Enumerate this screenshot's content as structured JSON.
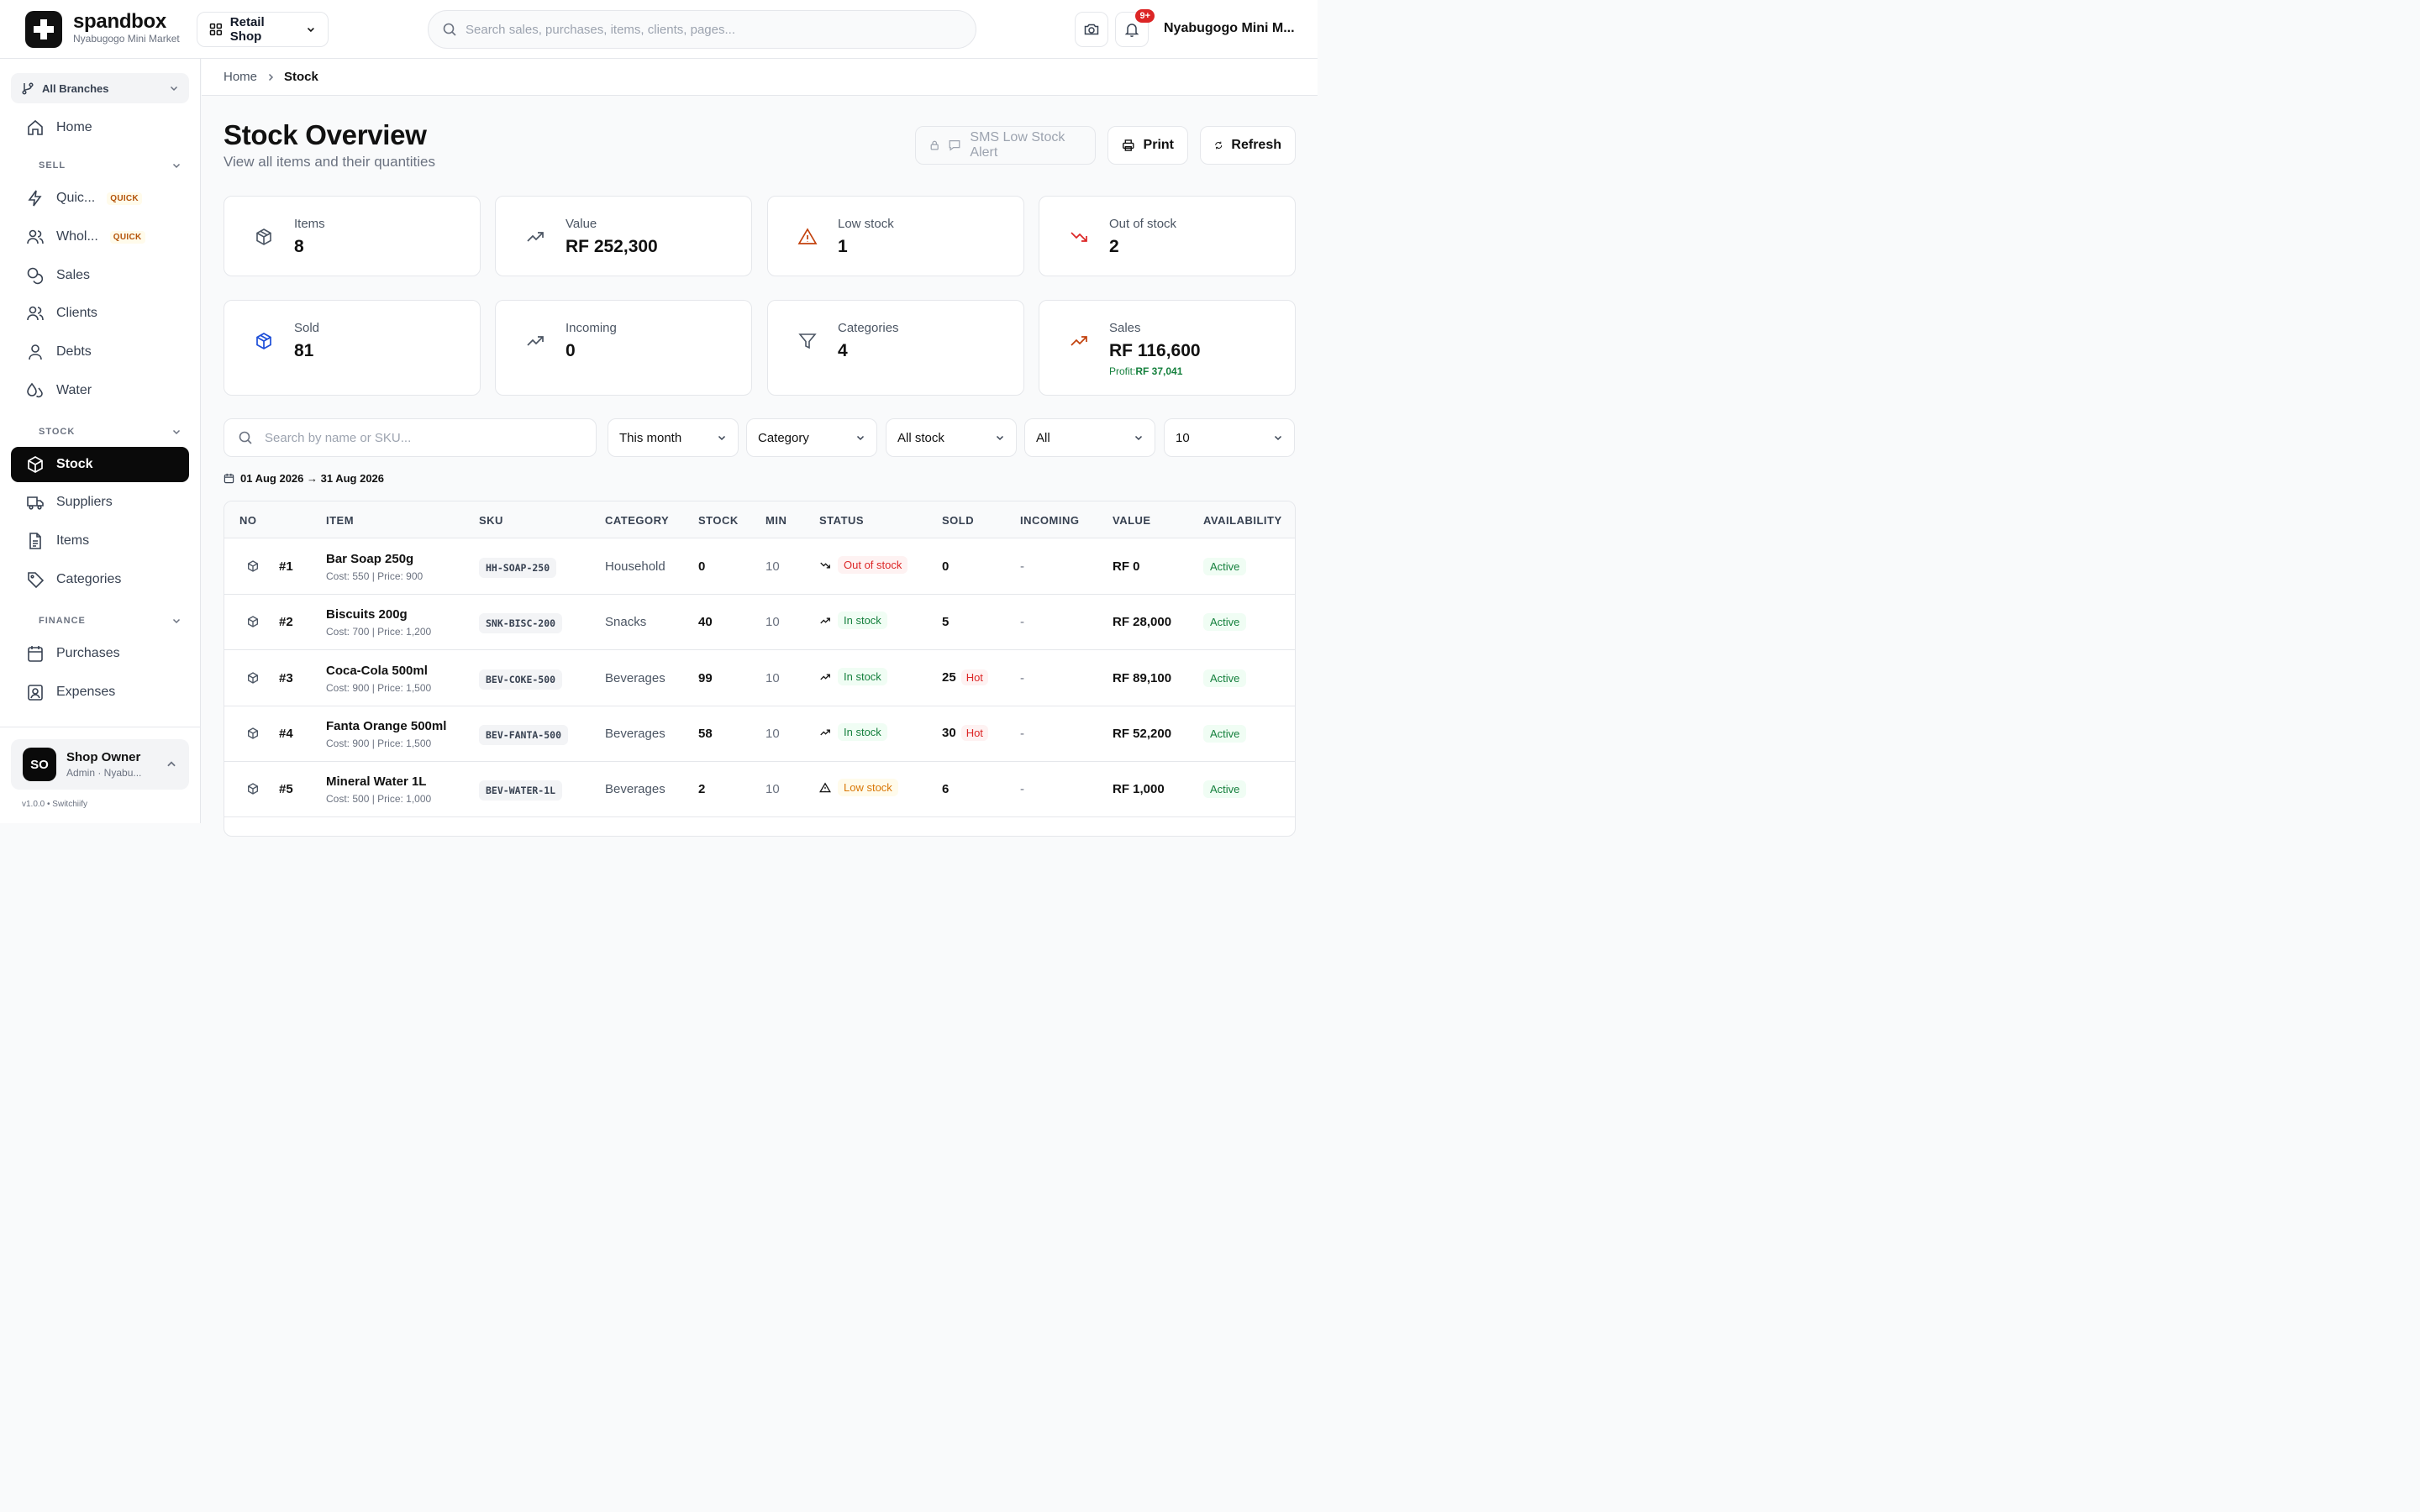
{
  "brand": {
    "name": "spandbox",
    "subtitle": "Nyabugogo Mini Market"
  },
  "topbar": {
    "shop_selector": "Retail Shop",
    "search_placeholder": "Search sales, purchases, items, clients, pages...",
    "notification_badge": "9+",
    "user_name": "Nyabugogo Mini M..."
  },
  "sidebar": {
    "branch": "All Branches",
    "home": "Home",
    "sections": {
      "sell": "SELL",
      "stock": "STOCK",
      "finance": "FINANCE"
    },
    "sell_items": [
      {
        "label": "Quic...",
        "tag": "QUICK"
      },
      {
        "label": "Whol...",
        "tag": "QUICK"
      },
      {
        "label": "Sales"
      },
      {
        "label": "Clients"
      },
      {
        "label": "Debts"
      },
      {
        "label": "Water"
      }
    ],
    "stock_items": [
      "Stock",
      "Suppliers",
      "Items",
      "Categories"
    ],
    "finance_items": [
      "Purchases",
      "Expenses"
    ],
    "user": {
      "initials": "SO",
      "name": "Shop Owner",
      "role": "Admin · Nyabu..."
    },
    "version": "v1.0.0 • Switchiify"
  },
  "breadcrumb": {
    "home": "Home",
    "current": "Stock"
  },
  "page": {
    "title": "Stock Overview",
    "subtitle": "View all items and their quantities"
  },
  "actions": {
    "sms": "SMS Low Stock Alert",
    "print": "Print",
    "refresh": "Refresh"
  },
  "stats": [
    {
      "label": "Items",
      "value": "8",
      "icon": "box-icon"
    },
    {
      "label": "Value",
      "value": "RF 252,300",
      "icon": "trending-up-icon"
    },
    {
      "label": "Low stock",
      "value": "1",
      "icon": "warning-icon",
      "color": "#c2410c"
    },
    {
      "label": "Out of stock",
      "value": "2",
      "icon": "trending-down-icon",
      "color": "#dc2626"
    },
    {
      "label": "Sold",
      "value": "81",
      "icon": "box-icon",
      "color": "#1d4ed8"
    },
    {
      "label": "Incoming",
      "value": "0",
      "icon": "trending-up-icon"
    },
    {
      "label": "Categories",
      "value": "4",
      "icon": "filter-icon"
    },
    {
      "label": "Sales",
      "value": "RF 116,600",
      "icon": "trending-up-icon",
      "color": "#c2410c",
      "profit_label": "Profit:",
      "profit_value": "RF 37,041"
    }
  ],
  "filters": {
    "search_placeholder": "Search by name or SKU...",
    "period": "This month",
    "category": "Category",
    "stock": "All stock",
    "status": "All",
    "page_size": "10",
    "date_range": "01 Aug 2026 → 31 Aug 2026"
  },
  "table": {
    "columns": [
      "NO",
      "ITEM",
      "SKU",
      "CATEGORY",
      "STOCK",
      "MIN",
      "STATUS",
      "SOLD",
      "INCOMING",
      "VALUE",
      "AVAILABILITY"
    ],
    "rows": [
      {
        "no": "#1",
        "name": "Bar Soap 250g",
        "meta": "Cost: 550 | Price: 900",
        "sku": "HH-SOAP-250",
        "category": "Household",
        "stock": "0",
        "min": "10",
        "status": "Out of stock",
        "status_type": "out",
        "sold": "0",
        "hot": "",
        "incoming": "-",
        "value": "RF 0",
        "availability": "Active"
      },
      {
        "no": "#2",
        "name": "Biscuits 200g",
        "meta": "Cost: 700 | Price: 1,200",
        "sku": "SNK-BISC-200",
        "category": "Snacks",
        "stock": "40",
        "min": "10",
        "status": "In stock",
        "status_type": "in",
        "sold": "5",
        "hot": "",
        "incoming": "-",
        "value": "RF 28,000",
        "availability": "Active"
      },
      {
        "no": "#3",
        "name": "Coca-Cola 500ml",
        "meta": "Cost: 900 | Price: 1,500",
        "sku": "BEV-COKE-500",
        "category": "Beverages",
        "stock": "99",
        "min": "10",
        "status": "In stock",
        "status_type": "in",
        "sold": "25",
        "hot": "Hot",
        "incoming": "-",
        "value": "RF 89,100",
        "availability": "Active"
      },
      {
        "no": "#4",
        "name": "Fanta Orange 500ml",
        "meta": "Cost: 900 | Price: 1,500",
        "sku": "BEV-FANTA-500",
        "category": "Beverages",
        "stock": "58",
        "min": "10",
        "status": "In stock",
        "status_type": "in",
        "sold": "30",
        "hot": "Hot",
        "incoming": "-",
        "value": "RF 52,200",
        "availability": "Active"
      },
      {
        "no": "#5",
        "name": "Mineral Water 1L",
        "meta": "Cost: 500 | Price: 1,000",
        "sku": "BEV-WATER-1L",
        "category": "Beverages",
        "stock": "2",
        "min": "10",
        "status": "Low stock",
        "status_type": "low",
        "sold": "6",
        "hot": "",
        "incoming": "-",
        "value": "RF 1,000",
        "availability": "Active"
      }
    ]
  }
}
